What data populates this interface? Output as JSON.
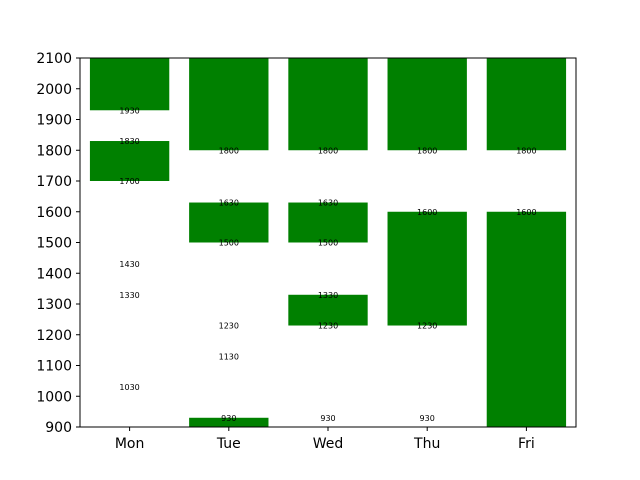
{
  "chart_data": {
    "type": "bar",
    "categories": [
      "Mon",
      "Tue",
      "Wed",
      "Thu",
      "Fri"
    ],
    "ylim": [
      900,
      2100
    ],
    "yticks": [
      900,
      1000,
      1100,
      1200,
      1300,
      1400,
      1500,
      1600,
      1700,
      1800,
      1900,
      2000,
      2100
    ],
    "bar_color": "#008000",
    "grid": false,
    "bars": [
      {
        "category": "Mon",
        "start": 1930,
        "end": 2100
      },
      {
        "category": "Mon",
        "start": 1700,
        "end": 1830
      },
      {
        "category": "Tue",
        "start": 1800,
        "end": 2100
      },
      {
        "category": "Tue",
        "start": 1500,
        "end": 1630
      },
      {
        "category": "Tue",
        "start": 900,
        "end": 930
      },
      {
        "category": "Wed",
        "start": 1800,
        "end": 2100
      },
      {
        "category": "Wed",
        "start": 1500,
        "end": 1630
      },
      {
        "category": "Wed",
        "start": 1230,
        "end": 1330
      },
      {
        "category": "Thu",
        "start": 1800,
        "end": 2100
      },
      {
        "category": "Thu",
        "start": 1230,
        "end": 1600
      },
      {
        "category": "Fri",
        "start": 1800,
        "end": 2100
      },
      {
        "category": "Fri",
        "start": 900,
        "end": 1600
      }
    ],
    "annotations": [
      {
        "category": "Mon",
        "value": 1930,
        "text": "1930"
      },
      {
        "category": "Mon",
        "value": 1830,
        "text": "1830"
      },
      {
        "category": "Mon",
        "value": 1700,
        "text": "1700"
      },
      {
        "category": "Mon",
        "value": 1430,
        "text": "1430"
      },
      {
        "category": "Mon",
        "value": 1330,
        "text": "1330"
      },
      {
        "category": "Mon",
        "value": 1030,
        "text": "1030"
      },
      {
        "category": "Tue",
        "value": 1800,
        "text": "1800"
      },
      {
        "category": "Tue",
        "value": 1630,
        "text": "1630"
      },
      {
        "category": "Tue",
        "value": 1500,
        "text": "1500"
      },
      {
        "category": "Tue",
        "value": 1230,
        "text": "1230"
      },
      {
        "category": "Tue",
        "value": 1130,
        "text": "1130"
      },
      {
        "category": "Tue",
        "value": 930,
        "text": "930"
      },
      {
        "category": "Wed",
        "value": 1800,
        "text": "1800"
      },
      {
        "category": "Wed",
        "value": 1630,
        "text": "1630"
      },
      {
        "category": "Wed",
        "value": 1500,
        "text": "1500"
      },
      {
        "category": "Wed",
        "value": 1330,
        "text": "1330"
      },
      {
        "category": "Wed",
        "value": 1230,
        "text": "1230"
      },
      {
        "category": "Wed",
        "value": 930,
        "text": "930"
      },
      {
        "category": "Thu",
        "value": 1800,
        "text": "1800"
      },
      {
        "category": "Thu",
        "value": 1600,
        "text": "1600"
      },
      {
        "category": "Thu",
        "value": 1230,
        "text": "1230"
      },
      {
        "category": "Thu",
        "value": 930,
        "text": "930"
      },
      {
        "category": "Fri",
        "value": 1800,
        "text": "1800"
      },
      {
        "category": "Fri",
        "value": 1600,
        "text": "1600"
      }
    ]
  }
}
